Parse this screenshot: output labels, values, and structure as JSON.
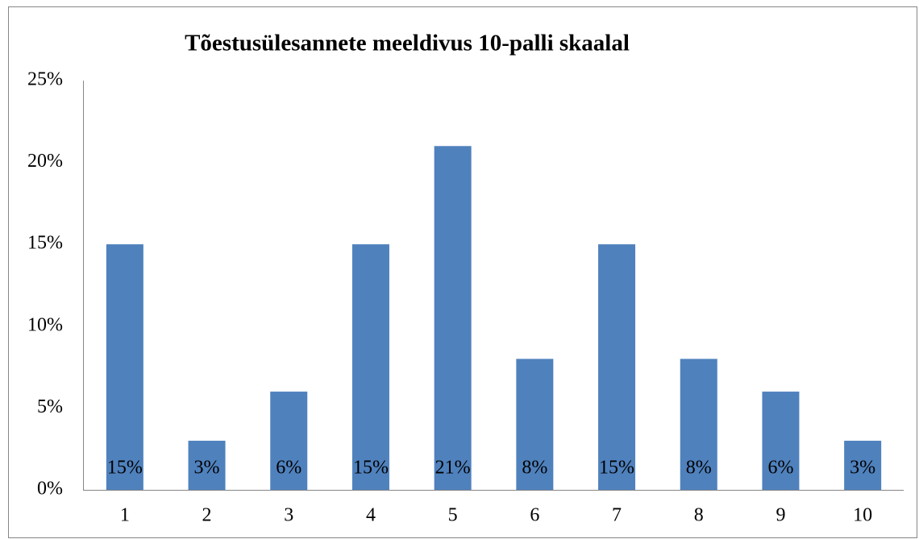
{
  "chart_data": {
    "type": "bar",
    "title": "Tõestusülesannete meeldivus 10-palli skaalal",
    "categories": [
      "1",
      "2",
      "3",
      "4",
      "5",
      "6",
      "7",
      "8",
      "9",
      "10"
    ],
    "values": [
      15,
      3,
      6,
      15,
      21,
      8,
      15,
      8,
      6,
      3
    ],
    "value_labels": [
      "15%",
      "3%",
      "6%",
      "15%",
      "21%",
      "8%",
      "15%",
      "8%",
      "6%",
      "3%"
    ],
    "color": "#4f81bd",
    "ylim": [
      0,
      25
    ],
    "yticks": [
      {
        "value": 0,
        "label": "0%"
      },
      {
        "value": 5,
        "label": "5%"
      },
      {
        "value": 10,
        "label": "10%"
      },
      {
        "value": 15,
        "label": "15%"
      },
      {
        "value": 20,
        "label": "20%"
      },
      {
        "value": 25,
        "label": "25%"
      }
    ],
    "grid": false
  }
}
